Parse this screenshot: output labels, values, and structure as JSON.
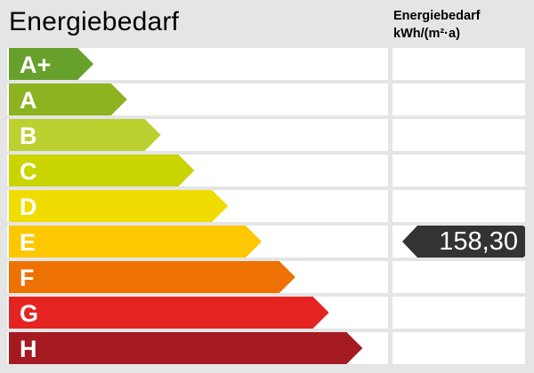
{
  "title": "Energiebedarf",
  "column_header": {
    "line1": "Energiebedarf",
    "line2": "kWh/(m²·a)"
  },
  "chart_data": {
    "type": "bar",
    "categories": [
      "A+",
      "A",
      "B",
      "C",
      "D",
      "E",
      "F",
      "G",
      "H"
    ],
    "colors": [
      "#67a02a",
      "#8db320",
      "#bcd030",
      "#c9d400",
      "#f0dc00",
      "#fdc800",
      "#ee7203",
      "#e52422",
      "#a51a21"
    ],
    "value": "158,30",
    "value_class": "E",
    "marker_color": "#333333"
  }
}
